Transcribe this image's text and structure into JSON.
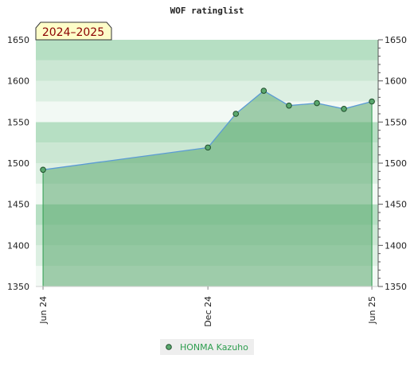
{
  "chart_data": {
    "type": "area",
    "title": "WOF ratinglist",
    "season_label": "2024–2025",
    "ylim": [
      1350,
      1650
    ],
    "y_ticks": [
      1350,
      1400,
      1450,
      1500,
      1550,
      1600,
      1650
    ],
    "x_ticks": [
      "Jun 24",
      "Dec 24",
      "Jun 25"
    ],
    "series": [
      {
        "name": "HONMA Kazuho",
        "color": "#5aa86e",
        "points": [
          {
            "x": "2024-06-01",
            "y": 1492
          },
          {
            "x": "2024-12-01",
            "y": 1519
          },
          {
            "x": "2025-01-01",
            "y": 1560
          },
          {
            "x": "2025-02-01",
            "y": 1588
          },
          {
            "x": "2025-03-01",
            "y": 1570
          },
          {
            "x": "2025-04-01",
            "y": 1573
          },
          {
            "x": "2025-05-01",
            "y": 1566
          },
          {
            "x": "2025-06-01",
            "y": 1575
          }
        ]
      }
    ],
    "legend_position": "bottom",
    "grid": "horizontal bands"
  }
}
